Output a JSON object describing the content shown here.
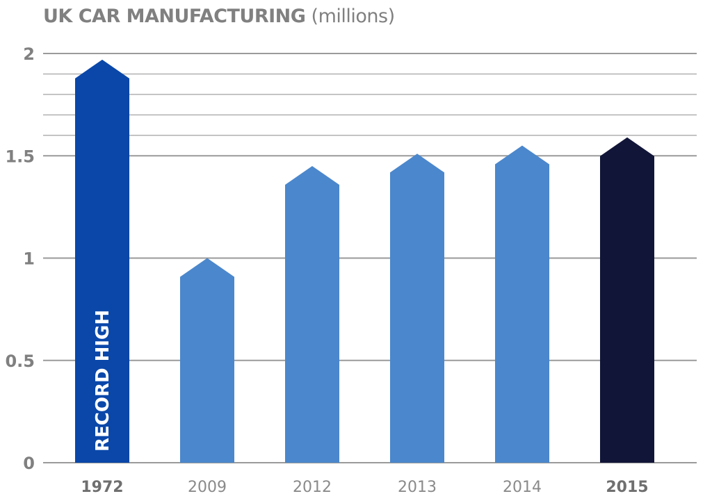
{
  "chart_data": {
    "type": "bar",
    "title": "UK CAR MANUFACTURING",
    "subtitle": "(millions)",
    "xlabel": "",
    "ylabel": "",
    "ylim": [
      0,
      2
    ],
    "yticks": [
      0,
      0.5,
      1,
      1.5,
      2
    ],
    "ytick_labels": [
      "0",
      "0.5",
      "1",
      "1.5",
      "2"
    ],
    "gridlines": [
      0,
      0.5,
      1,
      1.5,
      1.6,
      1.7,
      1.8,
      1.9,
      2
    ],
    "grid": true,
    "categories": [
      "1972",
      "2009",
      "2012",
      "2013",
      "2014",
      "2015"
    ],
    "values": [
      1.97,
      1.0,
      1.45,
      1.51,
      1.55,
      1.59
    ],
    "bold_categories": [
      "1972",
      "2015"
    ],
    "colors": [
      "#0a47a9",
      "#4b87cc",
      "#4b87cc",
      "#4b87cc",
      "#4b87cc",
      "#111538"
    ],
    "annotations": [
      {
        "category": "1972",
        "text": "RECORD HIGH"
      }
    ],
    "legend": "none"
  }
}
